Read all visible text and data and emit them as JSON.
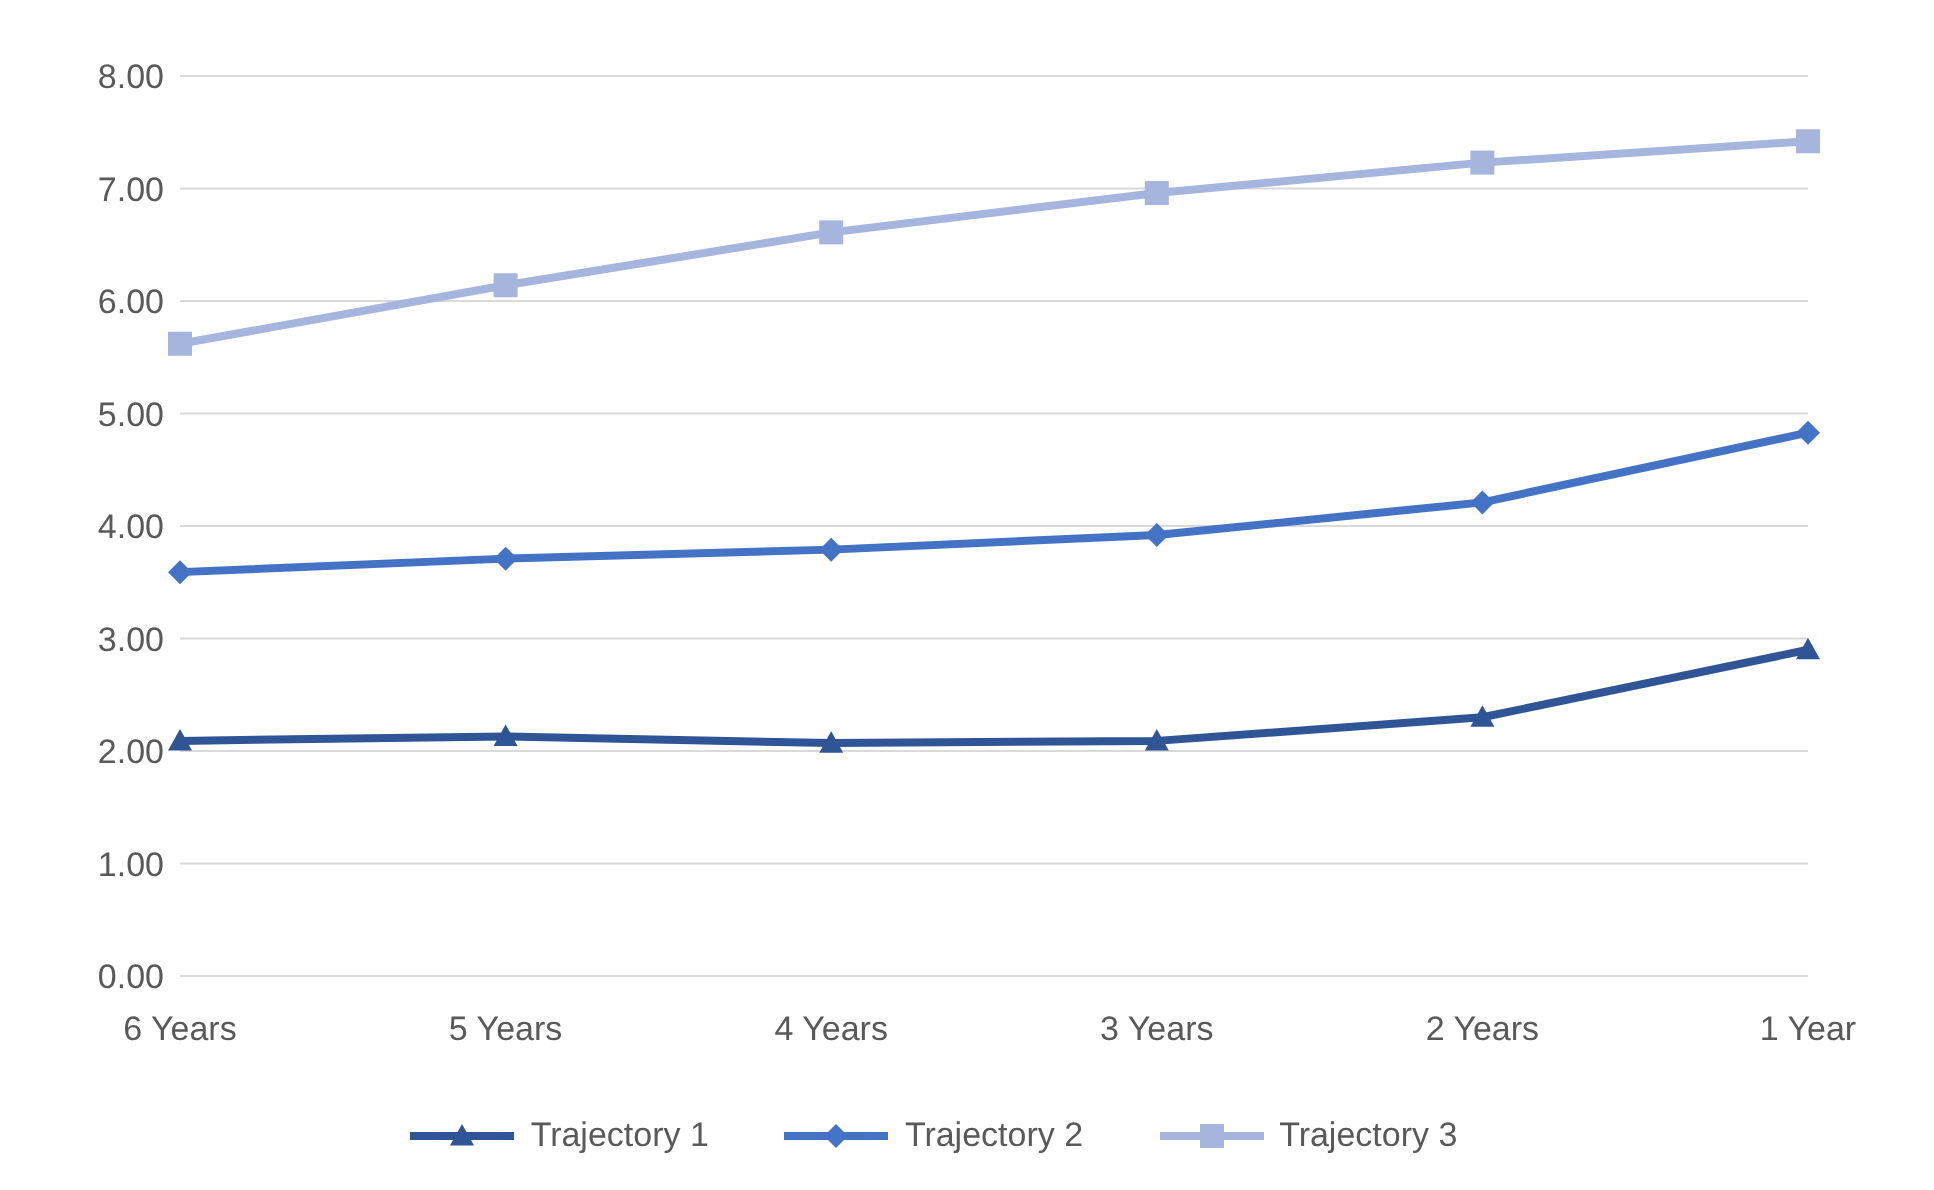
{
  "chart_data": {
    "type": "line",
    "categories": [
      "6 Years",
      "5 Years",
      "4 Years",
      "3 Years",
      "2 Years",
      "1 Year"
    ],
    "series": [
      {
        "name": "Trajectory 1",
        "color": "#2f5597",
        "marker": "triangle",
        "values": [
          2.09,
          2.13,
          2.07,
          2.09,
          2.3,
          2.9
        ]
      },
      {
        "name": "Trajectory 2",
        "color": "#4472c4",
        "marker": "diamond",
        "values": [
          3.59,
          3.71,
          3.79,
          3.92,
          4.21,
          4.83
        ]
      },
      {
        "name": "Trajectory 3",
        "color": "#a5b5de",
        "marker": "square",
        "values": [
          5.62,
          6.14,
          6.61,
          6.96,
          7.23,
          7.42
        ]
      }
    ],
    "ylim": [
      0,
      8
    ],
    "yticks": [
      {
        "value": 0,
        "label": "0.00"
      },
      {
        "value": 1,
        "label": "1.00"
      },
      {
        "value": 2,
        "label": "2.00"
      },
      {
        "value": 3,
        "label": "3.00"
      },
      {
        "value": 4,
        "label": "4.00"
      },
      {
        "value": 5,
        "label": "5.00"
      },
      {
        "value": 6,
        "label": "6.00"
      },
      {
        "value": 7,
        "label": "7.00"
      },
      {
        "value": 8,
        "label": "8.00"
      }
    ],
    "grid": "y",
    "legend": "bottom",
    "line_style": "solid"
  }
}
